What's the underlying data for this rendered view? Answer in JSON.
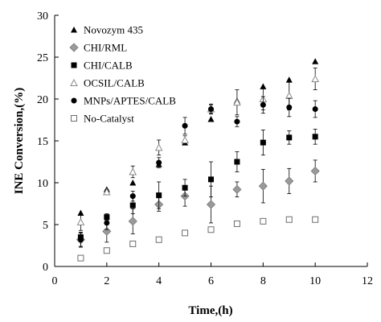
{
  "chart_data": {
    "type": "scatter",
    "title": "",
    "xlabel": "Time,(h)",
    "ylabel": "INE Conversion,(%)",
    "xlim": [
      0,
      12
    ],
    "ylim": [
      0,
      30
    ],
    "xticks": [
      "0",
      "2",
      "4",
      "6",
      "8",
      "10",
      "12"
    ],
    "yticks": [
      "0",
      "5",
      "10",
      "15",
      "20",
      "25",
      "30"
    ],
    "grid": false,
    "legend_position": "top-left",
    "series": [
      {
        "name": "Novozym 435",
        "marker": "filled-triangle",
        "color": "#000000",
        "x": [
          1,
          2,
          3,
          4,
          5,
          6,
          7,
          8,
          9,
          10
        ],
        "y": [
          6.4,
          9.2,
          10.0,
          12.2,
          14.8,
          17.6,
          19.8,
          21.5,
          22.3,
          24.5
        ],
        "err": [
          0,
          0,
          0,
          0,
          0,
          0,
          0,
          0,
          0,
          0
        ]
      },
      {
        "name": "CHI/RML",
        "marker": "grey-diamond",
        "color": "#9a9a9a",
        "x": [
          1,
          2,
          3,
          4,
          5,
          6,
          7,
          8,
          9,
          10
        ],
        "y": [
          3.2,
          4.2,
          5.4,
          7.4,
          8.4,
          7.4,
          9.2,
          9.6,
          10.2,
          11.4
        ],
        "err": [
          0.8,
          1.3,
          1.5,
          0.8,
          1.2,
          2.2,
          0.9,
          2.0,
          1.5,
          1.3
        ]
      },
      {
        "name": "CHI/CALB",
        "marker": "filled-square",
        "color": "#000000",
        "x": [
          1,
          2,
          3,
          4,
          5,
          6,
          7,
          8,
          9,
          10
        ],
        "y": [
          3.5,
          5.9,
          7.3,
          8.5,
          9.4,
          10.4,
          12.5,
          14.8,
          15.4,
          15.5
        ],
        "err": [
          0.5,
          0.4,
          1.0,
          1.6,
          1.0,
          2.1,
          1.2,
          1.5,
          0.8,
          0.9
        ]
      },
      {
        "name": "OCSIL/CALB",
        "marker": "open-triangle",
        "color": "#8a8a8a",
        "x": [
          1,
          2,
          3,
          4,
          5,
          6,
          7,
          8,
          9,
          10
        ],
        "y": [
          5.3,
          8.9,
          11.3,
          14.2,
          15.1,
          18.8,
          19.6,
          20.0,
          20.4,
          22.4
        ],
        "err": [
          1.0,
          0.3,
          0.7,
          0.9,
          0.5,
          0.5,
          1.5,
          1.3,
          1.7,
          1.3
        ]
      },
      {
        "name": "MNPs/APTES/CALB",
        "marker": "filled-circle",
        "color": "#000000",
        "x": [
          1,
          2,
          3,
          4,
          5,
          6,
          7,
          8,
          9,
          10
        ],
        "y": [
          3.2,
          5.2,
          8.4,
          12.4,
          16.8,
          18.8,
          17.3,
          19.3,
          19.0,
          18.8
        ],
        "err": [
          0.9,
          0.8,
          0.6,
          0.6,
          1.0,
          0.6,
          0.6,
          1.0,
          1.1,
          1.0
        ]
      },
      {
        "name": "No-Catalyst",
        "marker": "open-square",
        "color": "#6e6e6e",
        "x": [
          1,
          2,
          3,
          4,
          5,
          6,
          7,
          8,
          9,
          10
        ],
        "y": [
          1.0,
          1.9,
          2.7,
          3.2,
          4.0,
          4.4,
          5.1,
          5.4,
          5.6,
          5.6
        ],
        "err": [
          0,
          0,
          0,
          0,
          0,
          0,
          0,
          0,
          0,
          0
        ]
      }
    ]
  }
}
